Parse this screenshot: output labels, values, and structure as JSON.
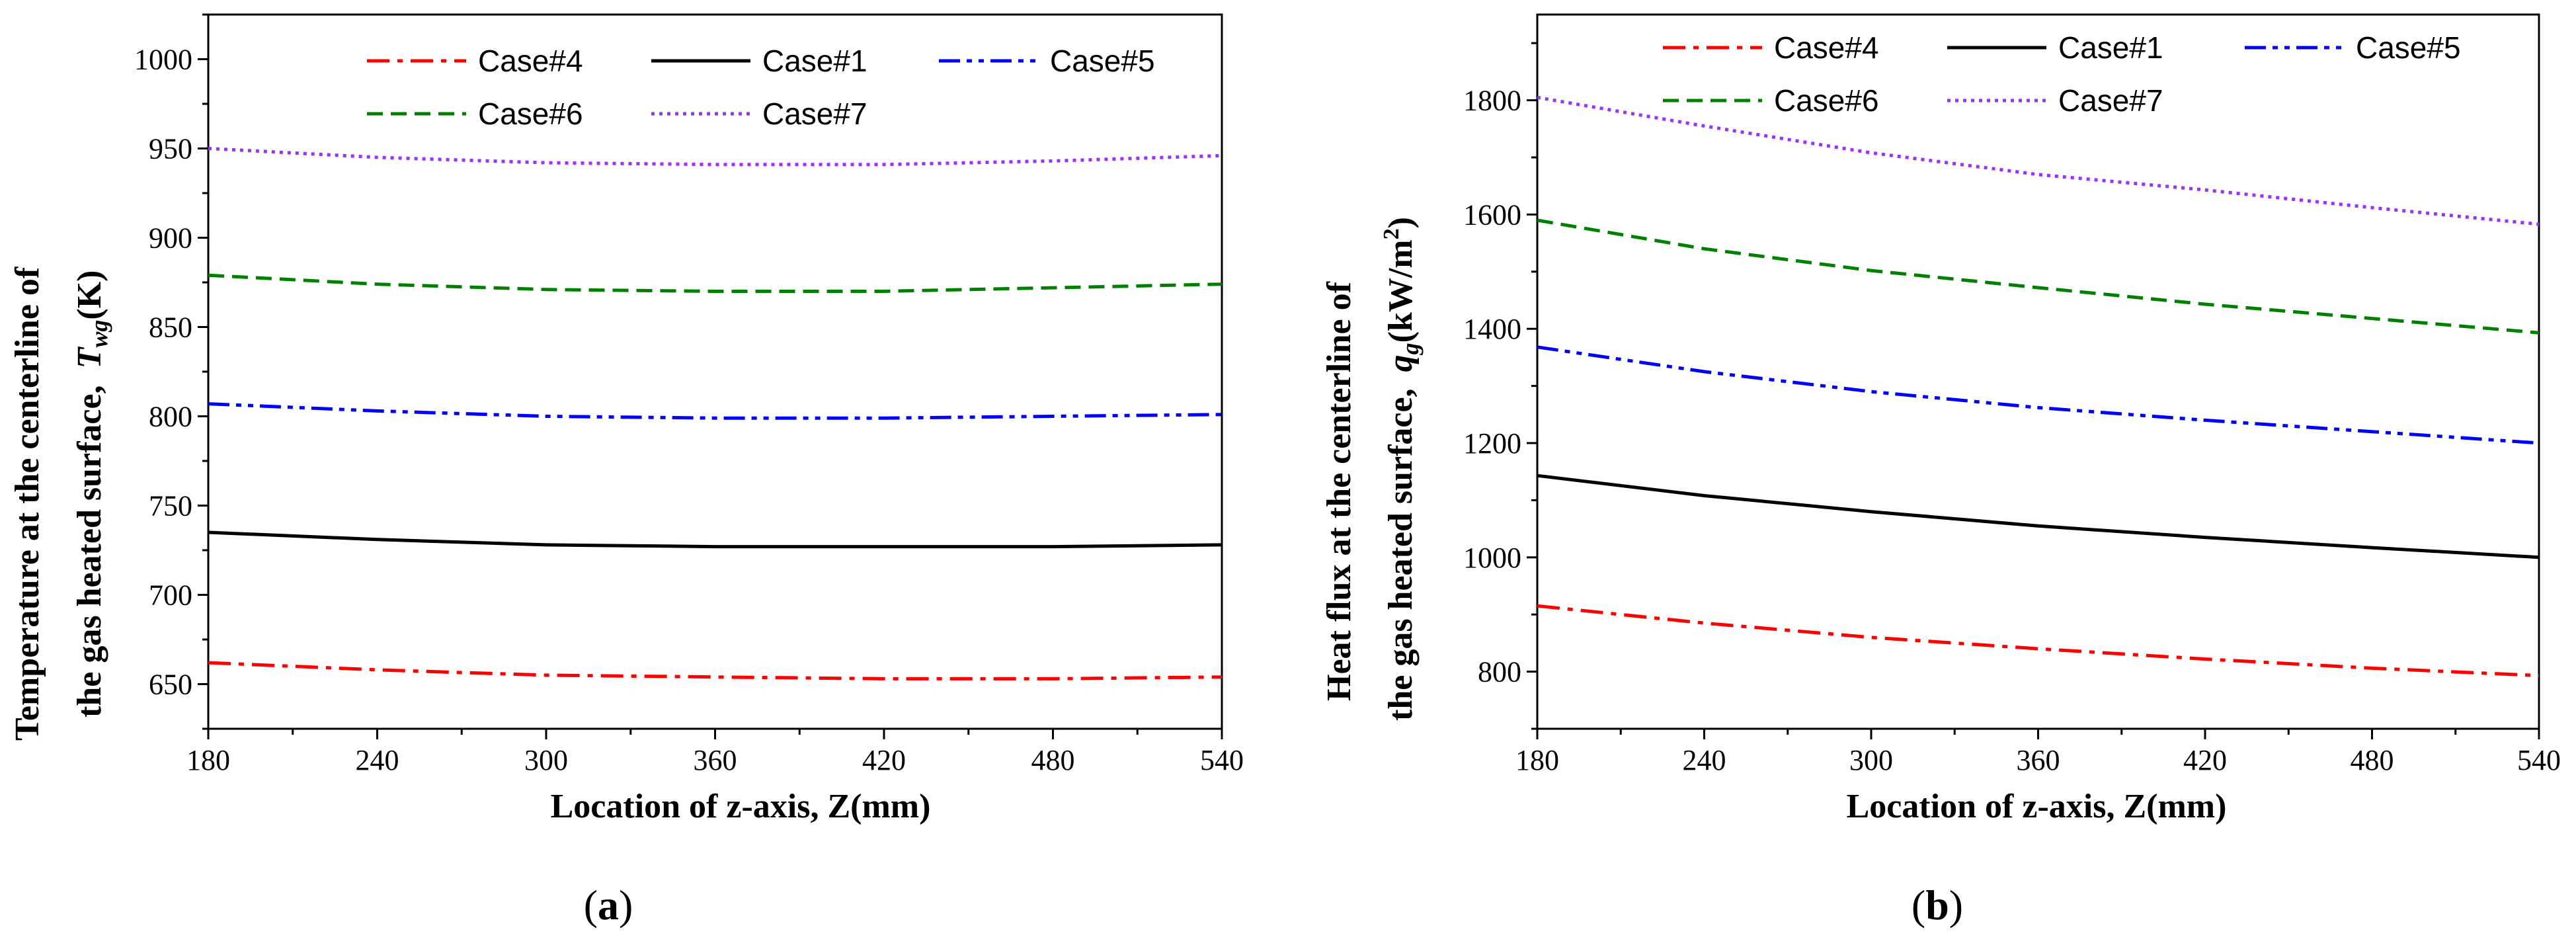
{
  "chart_data": [
    {
      "type": "line",
      "panel_label": "a",
      "xlabel": "Location of z-axis, Z(mm)",
      "ylabel_line1": "Temperature at the centerline of",
      "ylabel_line2": "the gas heated surface,",
      "ylabel_symbol": "T",
      "ylabel_subscript": "wg",
      "ylabel_unit": "(K)",
      "xlim": [
        180,
        540
      ],
      "ylim": [
        625,
        1025
      ],
      "xticks": [
        180,
        240,
        300,
        360,
        420,
        480,
        540
      ],
      "yticks": [
        650,
        700,
        750,
        800,
        850,
        900,
        950,
        1000
      ],
      "legend_position": "top-center",
      "series": [
        {
          "name": "Case#4",
          "color": "#ff0000",
          "dash": "dashdot",
          "x": [
            180,
            240,
            300,
            360,
            420,
            480,
            540
          ],
          "y": [
            662,
            658,
            655,
            654,
            653,
            653,
            654
          ]
        },
        {
          "name": "Case#1",
          "color": "#000000",
          "dash": "solid",
          "x": [
            180,
            240,
            300,
            360,
            420,
            480,
            540
          ],
          "y": [
            735,
            731,
            728,
            727,
            727,
            727,
            728
          ]
        },
        {
          "name": "Case#5",
          "color": "#0000ff",
          "dash": "dashdotdot",
          "x": [
            180,
            240,
            300,
            360,
            420,
            480,
            540
          ],
          "y": [
            807,
            803,
            800,
            799,
            799,
            800,
            801
          ]
        },
        {
          "name": "Case#6",
          "color": "#008000",
          "dash": "dash",
          "x": [
            180,
            240,
            300,
            360,
            420,
            480,
            540
          ],
          "y": [
            879,
            874,
            871,
            870,
            870,
            872,
            874
          ]
        },
        {
          "name": "Case#7",
          "color": "#9b30ff",
          "dash": "dot",
          "x": [
            180,
            240,
            300,
            360,
            420,
            480,
            540
          ],
          "y": [
            950,
            945,
            942,
            941,
            941,
            943,
            946
          ]
        }
      ]
    },
    {
      "type": "line",
      "panel_label": "b",
      "xlabel": "Location of z-axis, Z(mm)",
      "ylabel_line1": "Heat flux at the centerline of",
      "ylabel_line2": "the gas heated surface,",
      "ylabel_symbol": "q",
      "ylabel_subscript": "g",
      "ylabel_unit": "(kW/m",
      "ylabel_unit_sup": "2",
      "ylabel_unit_close": ")",
      "xlim": [
        180,
        540
      ],
      "ylim": [
        700,
        1950
      ],
      "xticks": [
        180,
        240,
        300,
        360,
        420,
        480,
        540
      ],
      "yticks": [
        800,
        1000,
        1200,
        1400,
        1600,
        1800
      ],
      "legend_position": "top-center",
      "series": [
        {
          "name": "Case#4",
          "color": "#ff0000",
          "dash": "dashdot",
          "x": [
            180,
            240,
            300,
            360,
            420,
            480,
            540
          ],
          "y": [
            915,
            885,
            860,
            840,
            822,
            806,
            793
          ]
        },
        {
          "name": "Case#1",
          "color": "#000000",
          "dash": "solid",
          "x": [
            180,
            240,
            300,
            360,
            420,
            480,
            540
          ],
          "y": [
            1143,
            1108,
            1080,
            1055,
            1035,
            1017,
            1000
          ]
        },
        {
          "name": "Case#5",
          "color": "#0000ff",
          "dash": "dashdotdot",
          "x": [
            180,
            240,
            300,
            360,
            420,
            480,
            540
          ],
          "y": [
            1368,
            1325,
            1290,
            1262,
            1240,
            1220,
            1200
          ]
        },
        {
          "name": "Case#6",
          "color": "#008000",
          "dash": "dash",
          "x": [
            180,
            240,
            300,
            360,
            420,
            480,
            540
          ],
          "y": [
            1590,
            1540,
            1502,
            1472,
            1443,
            1418,
            1393
          ]
        },
        {
          "name": "Case#7",
          "color": "#9b30ff",
          "dash": "dot",
          "x": [
            180,
            240,
            300,
            360,
            420,
            480,
            540
          ],
          "y": [
            1805,
            1755,
            1708,
            1670,
            1643,
            1612,
            1583
          ]
        }
      ]
    }
  ]
}
